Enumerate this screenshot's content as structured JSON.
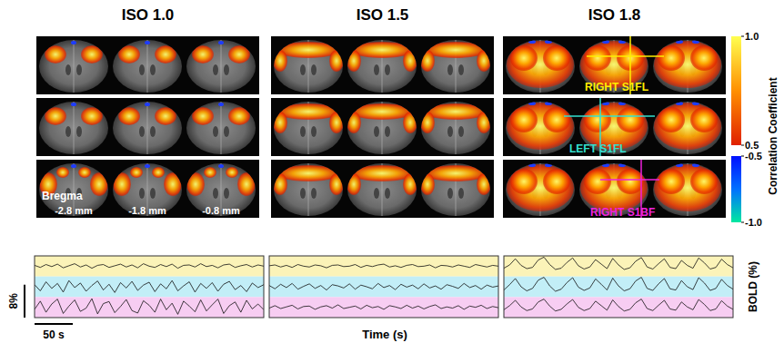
{
  "brain_maps": {
    "bregma_label": "Bregma",
    "slices": [
      "-2.8 mm",
      "-1.8 mm",
      "-0.8 mm"
    ],
    "regions": [
      {
        "label": "RIGHT S1FL",
        "color": "#ffee00"
      },
      {
        "label": "LEFT S1FL",
        "color": "#33e0d0"
      },
      {
        "label": "RIGHT S1BF",
        "color": "#ee22dd"
      }
    ]
  },
  "colorbar": {
    "title": "Correlation Coefficient",
    "segments": [
      {
        "range": [
          0.5,
          1.0
        ],
        "colors": [
          "#e02000",
          "#ff9000",
          "#ffff50"
        ]
      },
      {
        "range": [
          -1.0,
          -0.5
        ],
        "colors": [
          "#00e8a0",
          "#0070ff",
          "#0010ff"
        ]
      }
    ],
    "ticks": [
      {
        "value": 1.0,
        "label": "1.0"
      },
      {
        "value": 0.5,
        "label": "0.5"
      },
      {
        "value": -0.5,
        "label": "-0.5"
      },
      {
        "value": -1.0,
        "label": "-1.0"
      }
    ]
  },
  "axis_titles": {
    "x": "Time (s)",
    "y": "BOLD (%)"
  },
  "scale_bars": {
    "time": {
      "value": 50,
      "label": "50 s"
    },
    "bold": {
      "value": 8,
      "label": "8%"
    }
  },
  "chart_data": [
    {
      "type": "line",
      "title": "ISO 1.0",
      "tick_labels": false,
      "xlim": [
        0,
        300
      ],
      "ylim": [
        -2.5,
        2.5
      ],
      "x": [
        0,
        7.5,
        15,
        22.5,
        30,
        37.5,
        45,
        52.5,
        60,
        67.5,
        75,
        82.5,
        90,
        97.5,
        105,
        112.5,
        120,
        127.5,
        135,
        142.5,
        150,
        157.5,
        165,
        172.5,
        180,
        187.5,
        195,
        202.5,
        210,
        217.5,
        225,
        232.5,
        240,
        247.5,
        255,
        262.5,
        270,
        277.5,
        285,
        292.5,
        300
      ],
      "series": [
        {
          "color": "#fbf3b8",
          "values": [
            0.2,
            -0.3,
            0.4,
            -0.1,
            0.5,
            -0.4,
            0.1,
            0.6,
            -0.2,
            0.3,
            -0.5,
            0.2,
            0.4,
            -0.3,
            0.1,
            0.5,
            -0.2,
            0.3,
            -0.4,
            0.6,
            0.0,
            -0.3,
            0.4,
            -0.1,
            0.5,
            -0.5,
            0.2,
            0.3,
            -0.2,
            0.6,
            -0.1,
            0.2,
            -0.4,
            0.3,
            0.5,
            -0.3,
            0.1,
            0.4,
            -0.2,
            0.3,
            0.0
          ]
        },
        {
          "color": "#c2eef7",
          "values": [
            0.5,
            -1.0,
            1.2,
            -0.4,
            0.8,
            -1.3,
            1.5,
            -0.2,
            0.9,
            -1.1,
            0.3,
            1.4,
            -0.8,
            0.6,
            -1.4,
            1.0,
            -0.3,
            1.3,
            -0.9,
            0.4,
            1.1,
            -1.2,
            0.7,
            -0.5,
            1.5,
            -1.0,
            0.2,
            1.2,
            -1.3,
            0.8,
            -0.4,
            1.0,
            -1.1,
            0.6,
            1.3,
            -0.7,
            0.3,
            -1.2,
            0.9,
            -0.2,
            0.5
          ]
        },
        {
          "color": "#f7cdf2",
          "values": [
            -0.5,
            1.5,
            -1.2,
            0.8,
            2.0,
            -1.5,
            0.3,
            1.8,
            -1.0,
            -0.2,
            2.1,
            -1.6,
            0.9,
            1.4,
            -1.3,
            0.2,
            1.9,
            -0.8,
            -1.4,
            1.6,
            0.5,
            -1.2,
            2.0,
            -0.6,
            1.0,
            -1.7,
            1.5,
            0.3,
            -1.1,
            1.8,
            -0.9,
            0.6,
            2.0,
            -1.5,
            0.4,
            1.3,
            -1.2,
            1.7,
            -0.4,
            0.8,
            -0.6
          ]
        }
      ]
    },
    {
      "type": "line",
      "title": "ISO 1.5",
      "tick_labels": false,
      "xlim": [
        0,
        300
      ],
      "ylim": [
        -2.5,
        2.5
      ],
      "x": [
        0,
        7.5,
        15,
        22.5,
        30,
        37.5,
        45,
        52.5,
        60,
        67.5,
        75,
        82.5,
        90,
        97.5,
        105,
        112.5,
        120,
        127.5,
        135,
        142.5,
        150,
        157.5,
        165,
        172.5,
        180,
        187.5,
        195,
        202.5,
        210,
        217.5,
        225,
        232.5,
        240,
        247.5,
        255,
        262.5,
        270,
        277.5,
        285,
        292.5,
        300
      ],
      "series": [
        {
          "color": "#fbf3b8",
          "values": [
            0.1,
            0.3,
            -0.2,
            0.2,
            -0.3,
            0.4,
            0.0,
            -0.2,
            0.3,
            0.1,
            -0.4,
            0.2,
            0.3,
            -0.1,
            0.0,
            0.4,
            -0.3,
            0.2,
            -0.1,
            0.3,
            0.5,
            -0.2,
            0.1,
            -0.3,
            0.2,
            0.4,
            -0.1,
            0.0,
            0.3,
            -0.4,
            0.2,
            0.1,
            -0.2,
            0.3,
            0.0,
            -0.3,
            0.4,
            0.1,
            -0.2,
            0.2,
            0.0
          ]
        },
        {
          "color": "#c2eef7",
          "values": [
            0.3,
            -0.5,
            0.6,
            -0.2,
            0.8,
            -0.6,
            0.1,
            0.7,
            -0.4,
            0.3,
            -0.8,
            0.5,
            0.2,
            -0.3,
            0.7,
            -0.6,
            0.4,
            0.0,
            -0.5,
            0.8,
            -0.2,
            0.3,
            -0.7,
            0.6,
            -0.1,
            0.4,
            -0.5,
            0.7,
            -0.3,
            0.2,
            -0.6,
            0.5,
            0.1,
            -0.4,
            0.8,
            -0.2,
            0.3,
            -0.6,
            0.4,
            -0.1,
            0.2
          ]
        },
        {
          "color": "#f7cdf2",
          "values": [
            -0.2,
            0.4,
            -0.3,
            0.1,
            0.5,
            -0.4,
            0.2,
            0.3,
            -0.5,
            0.1,
            0.4,
            -0.2,
            0.6,
            -0.3,
            0.0,
            0.3,
            -0.4,
            0.5,
            -0.1,
            0.2,
            -0.5,
            0.4,
            0.1,
            -0.3,
            0.5,
            -0.2,
            0.3,
            -0.4,
            0.2,
            0.6,
            -0.3,
            0.1,
            -0.2,
            0.4,
            -0.5,
            0.3,
            0.0,
            0.5,
            -0.3,
            0.2,
            -0.1
          ]
        }
      ]
    },
    {
      "type": "line",
      "title": "ISO 1.8",
      "tick_labels": false,
      "xlim": [
        0,
        300
      ],
      "ylim": [
        -2.5,
        2.5
      ],
      "x": [
        0,
        7.5,
        15,
        22.5,
        30,
        37.5,
        45,
        52.5,
        60,
        67.5,
        75,
        82.5,
        90,
        97.5,
        105,
        112.5,
        120,
        127.5,
        135,
        142.5,
        150,
        157.5,
        165,
        172.5,
        180,
        187.5,
        195,
        202.5,
        210,
        217.5,
        225,
        232.5,
        240,
        247.5,
        255,
        262.5,
        270,
        277.5,
        285,
        292.5,
        300
      ],
      "series": [
        {
          "color": "#fbf3b8",
          "values": [
            -0.5,
            0.3,
            1.8,
            0.2,
            -0.6,
            -0.3,
            1.5,
            2.2,
            0.4,
            -0.8,
            -0.5,
            0.9,
            2.0,
            0.1,
            -0.7,
            -0.2,
            1.6,
            0.5,
            -0.6,
            1.9,
            0.3,
            -0.8,
            -0.4,
            1.2,
            2.1,
            -0.2,
            -0.7,
            0.6,
            1.8,
            -0.3,
            -0.6,
            1.4,
            0.2,
            -0.5,
            2.0,
            0.8,
            -0.7,
            -0.3,
            1.7,
            0.4,
            -0.4
          ]
        },
        {
          "color": "#c2eef7",
          "values": [
            -0.8,
            0.5,
            2.0,
            0.0,
            -1.0,
            -0.4,
            1.6,
            2.3,
            0.2,
            -1.1,
            -0.6,
            1.0,
            2.2,
            -0.1,
            -0.9,
            -0.3,
            1.9,
            0.6,
            -0.8,
            2.1,
            0.2,
            -1.0,
            -0.5,
            1.4,
            2.3,
            -0.4,
            -0.9,
            0.7,
            2.0,
            -0.5,
            -0.8,
            1.5,
            0.0,
            -0.7,
            2.2,
            0.9,
            -0.9,
            -0.4,
            1.8,
            0.3,
            -0.6
          ]
        },
        {
          "color": "#f7cdf2",
          "values": [
            -0.6,
            0.4,
            1.7,
            0.1,
            -0.8,
            -0.4,
            1.3,
            2.0,
            0.3,
            -0.9,
            -0.5,
            0.8,
            1.9,
            0.0,
            -0.8,
            -0.3,
            1.5,
            0.4,
            -0.7,
            1.8,
            0.2,
            -0.9,
            -0.5,
            1.1,
            2.0,
            -0.3,
            -0.8,
            0.5,
            1.7,
            -0.4,
            -0.7,
            1.3,
            0.1,
            -0.6,
            1.9,
            0.7,
            -0.8,
            -0.4,
            1.6,
            0.3,
            -0.5
          ]
        }
      ]
    }
  ]
}
